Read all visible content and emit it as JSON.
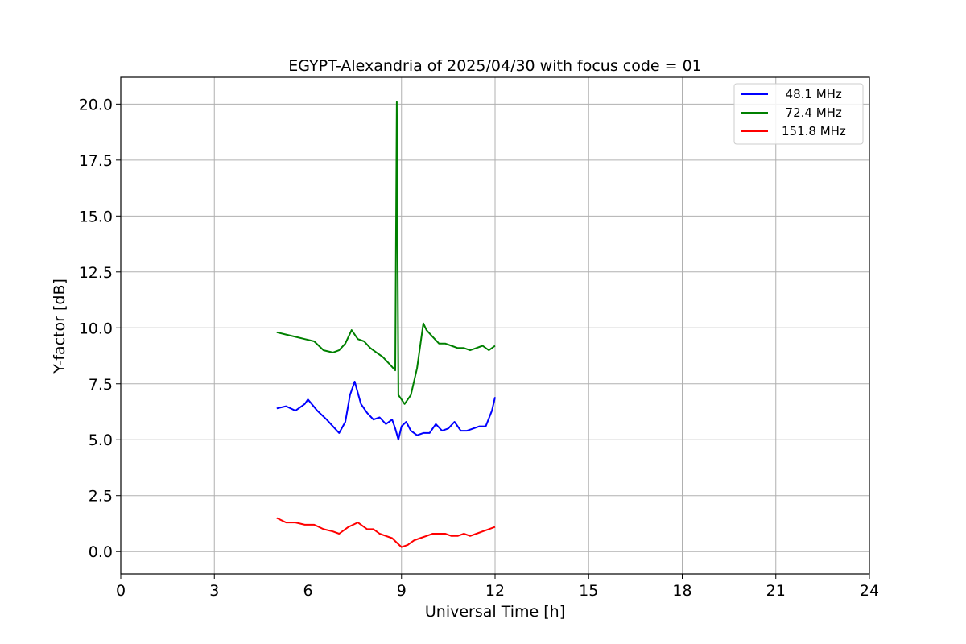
{
  "chart_data": {
    "type": "line",
    "title": "EGYPT-Alexandria of 2025/04/30 with focus code = 01",
    "xlabel": "Universal Time [h]",
    "ylabel": "Y-factor [dB]",
    "xlim": [
      0,
      24
    ],
    "ylim": [
      -1.0,
      21.2
    ],
    "xticks": [
      0,
      3,
      6,
      9,
      12,
      15,
      18,
      21,
      24
    ],
    "xtick_labels": [
      "0",
      "3",
      "6",
      "9",
      "12",
      "15",
      "18",
      "21",
      "24"
    ],
    "yticks": [
      0,
      2.5,
      5,
      7.5,
      10,
      12.5,
      15,
      17.5,
      20
    ],
    "ytick_labels": [
      "0.0",
      "2.5",
      "5.0",
      "7.5",
      "10.0",
      "12.5",
      "15.0",
      "17.5",
      "20.0"
    ],
    "grid": true,
    "legend_position": "top-right",
    "series": [
      {
        "name": "  48.1 MHz",
        "color": "#0000ff",
        "x": [
          5.0,
          5.3,
          5.6,
          5.9,
          6.0,
          6.3,
          6.6,
          6.8,
          7.0,
          7.2,
          7.35,
          7.5,
          7.7,
          7.9,
          8.1,
          8.3,
          8.5,
          8.7,
          8.8,
          8.9,
          9.0,
          9.15,
          9.3,
          9.5,
          9.7,
          9.9,
          10.1,
          10.3,
          10.5,
          10.7,
          10.9,
          11.1,
          11.3,
          11.5,
          11.7,
          11.9,
          12.0
        ],
        "y": [
          6.4,
          6.5,
          6.3,
          6.6,
          6.8,
          6.3,
          5.9,
          5.6,
          5.3,
          5.8,
          7.0,
          7.6,
          6.6,
          6.2,
          5.9,
          6.0,
          5.7,
          5.9,
          5.5,
          5.0,
          5.6,
          5.8,
          5.4,
          5.2,
          5.3,
          5.3,
          5.7,
          5.4,
          5.5,
          5.8,
          5.4,
          5.4,
          5.5,
          5.6,
          5.6,
          6.3,
          6.9
        ]
      },
      {
        "name": "  72.4 MHz",
        "color": "#008000",
        "x": [
          5.0,
          5.3,
          5.6,
          5.9,
          6.2,
          6.5,
          6.8,
          7.0,
          7.2,
          7.4,
          7.6,
          7.8,
          8.0,
          8.2,
          8.4,
          8.6,
          8.8,
          8.85,
          8.9,
          9.0,
          9.1,
          9.3,
          9.5,
          9.7,
          9.8,
          10.0,
          10.2,
          10.4,
          10.6,
          10.8,
          11.0,
          11.2,
          11.4,
          11.6,
          11.8,
          12.0
        ],
        "y": [
          9.8,
          9.7,
          9.6,
          9.5,
          9.4,
          9.0,
          8.9,
          9.0,
          9.3,
          9.9,
          9.5,
          9.4,
          9.1,
          8.9,
          8.7,
          8.4,
          8.1,
          20.1,
          7.0,
          6.8,
          6.6,
          7.0,
          8.2,
          10.2,
          9.9,
          9.6,
          9.3,
          9.3,
          9.2,
          9.1,
          9.1,
          9.0,
          9.1,
          9.2,
          9.0,
          9.2
        ]
      },
      {
        "name": "151.8 MHz",
        "color": "#ff0000",
        "x": [
          5.0,
          5.3,
          5.6,
          5.9,
          6.2,
          6.5,
          6.8,
          7.0,
          7.3,
          7.6,
          7.9,
          8.1,
          8.3,
          8.5,
          8.7,
          8.85,
          9.0,
          9.2,
          9.4,
          9.6,
          9.8,
          10.0,
          10.2,
          10.4,
          10.6,
          10.8,
          11.0,
          11.2,
          11.4,
          11.6,
          11.8,
          12.0
        ],
        "y": [
          1.5,
          1.3,
          1.3,
          1.2,
          1.2,
          1.0,
          0.9,
          0.8,
          1.1,
          1.3,
          1.0,
          1.0,
          0.8,
          0.7,
          0.6,
          0.4,
          0.2,
          0.3,
          0.5,
          0.6,
          0.7,
          0.8,
          0.8,
          0.8,
          0.7,
          0.7,
          0.8,
          0.7,
          0.8,
          0.9,
          1.0,
          1.1
        ]
      }
    ]
  }
}
